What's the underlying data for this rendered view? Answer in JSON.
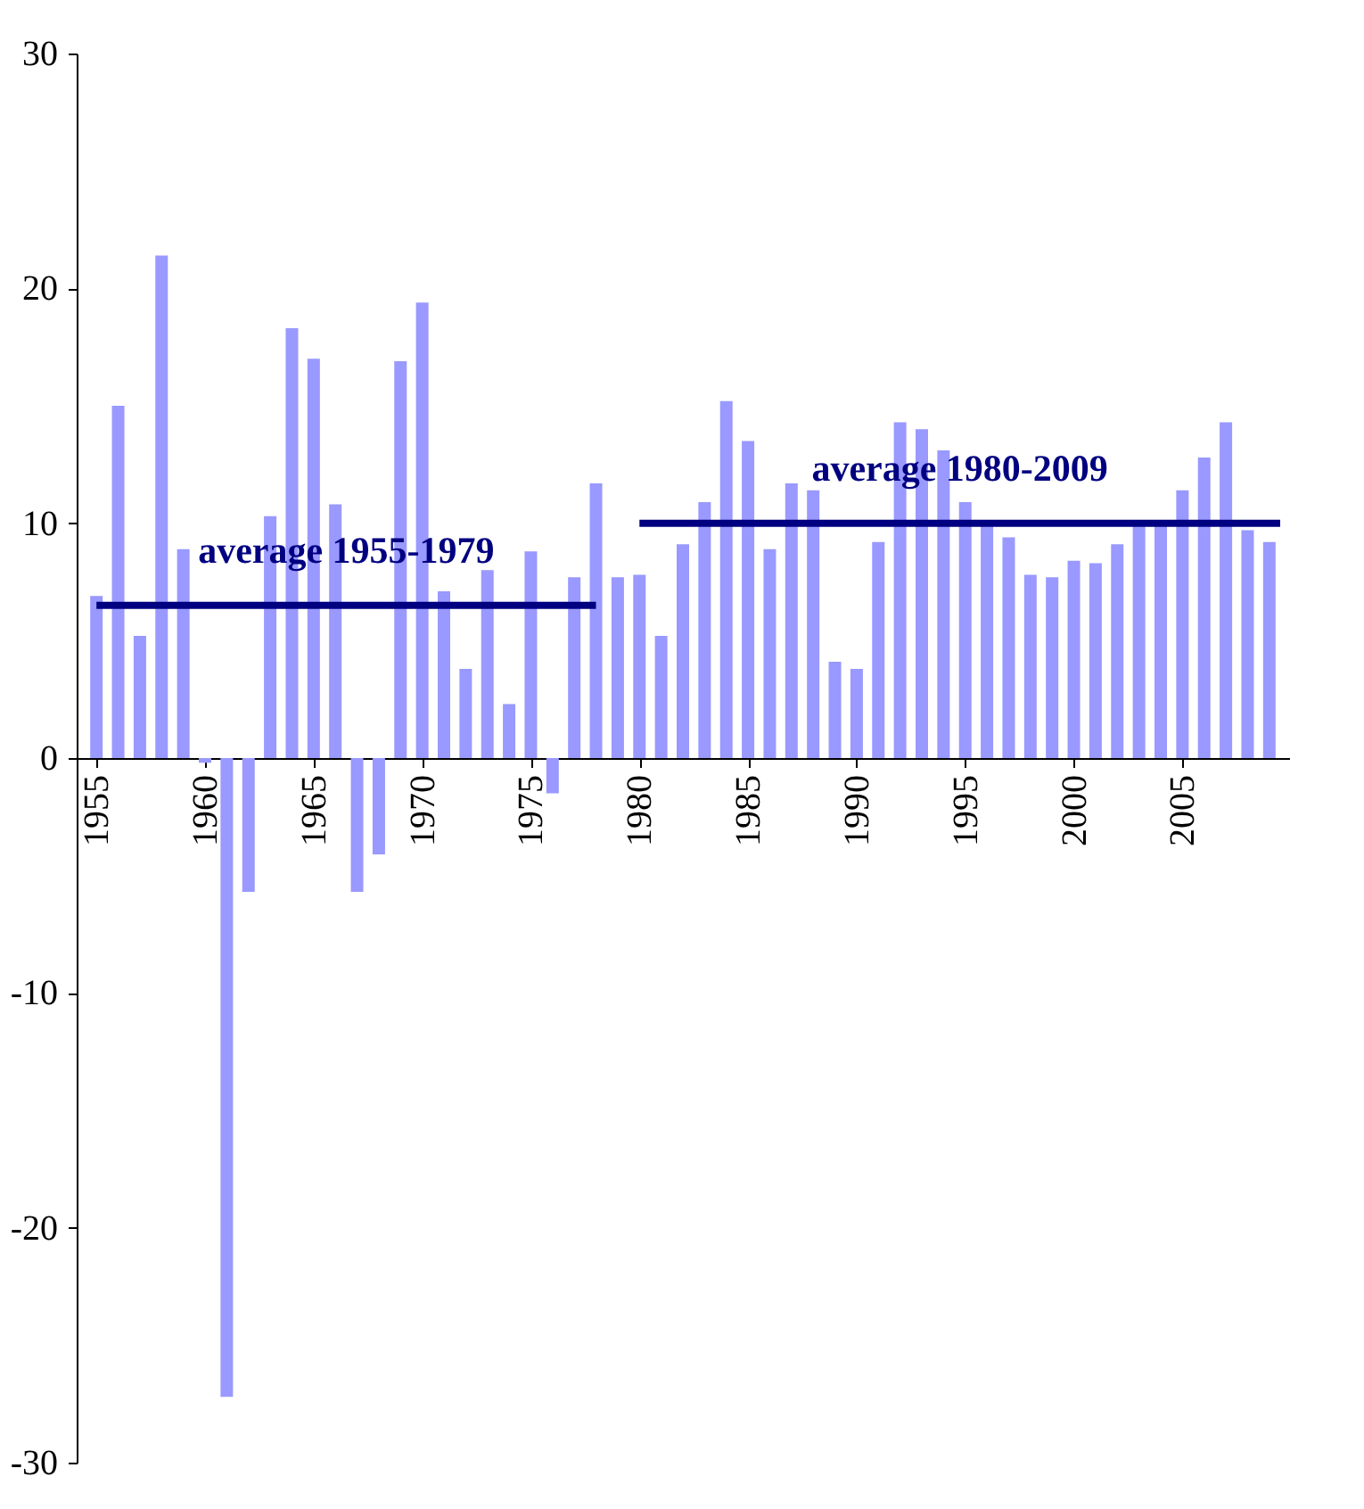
{
  "chart_data": {
    "type": "bar",
    "x": [
      1955,
      1956,
      1957,
      1958,
      1959,
      1960,
      1961,
      1962,
      1963,
      1964,
      1965,
      1966,
      1967,
      1968,
      1969,
      1970,
      1971,
      1972,
      1973,
      1974,
      1975,
      1976,
      1977,
      1978,
      1979,
      1980,
      1981,
      1982,
      1983,
      1984,
      1985,
      1986,
      1987,
      1988,
      1989,
      1990,
      1991,
      1992,
      1993,
      1994,
      1995,
      1996,
      1997,
      1998,
      1999,
      2000,
      2001,
      2002,
      2003,
      2004,
      2005,
      2006,
      2007,
      2008,
      2009
    ],
    "series": [
      {
        "color": "#9999ff",
        "values": [
          6.9,
          15.0,
          5.2,
          21.4,
          8.9,
          -0.2,
          -27.2,
          -5.7,
          10.3,
          18.3,
          17.0,
          10.8,
          -5.7,
          -4.1,
          16.9,
          19.4,
          7.1,
          3.8,
          8.0,
          2.3,
          8.8,
          -1.5,
          7.7,
          11.7,
          7.7,
          7.8,
          5.2,
          9.1,
          10.9,
          15.2,
          13.5,
          8.9,
          11.7,
          11.4,
          4.1,
          3.8,
          9.2,
          14.3,
          14.0,
          13.1,
          10.9,
          10.0,
          9.4,
          7.8,
          7.7,
          8.4,
          8.3,
          9.1,
          10.0,
          10.0,
          11.4,
          12.8,
          14.3,
          9.7,
          9.2
        ]
      },
      {
        "type": "line",
        "name": "average 1955-1979",
        "color": "#000080",
        "x": [
          1955,
          1978
        ],
        "values": [
          6.5,
          6.5
        ]
      },
      {
        "type": "line",
        "name": "average 1980-2009",
        "color": "#000080",
        "x": [
          1980,
          2009.5
        ],
        "values": [
          10.0,
          10.0
        ]
      }
    ],
    "xlim": [
      1954.5,
      2009.5
    ],
    "xticks": [
      1955,
      1960,
      1965,
      1970,
      1975,
      1980,
      1985,
      1990,
      1995,
      2000,
      2005
    ],
    "ylim": [
      -30,
      30
    ],
    "yticks": [
      -30,
      -20,
      -10,
      0,
      10,
      20,
      30
    ],
    "grid": false
  }
}
